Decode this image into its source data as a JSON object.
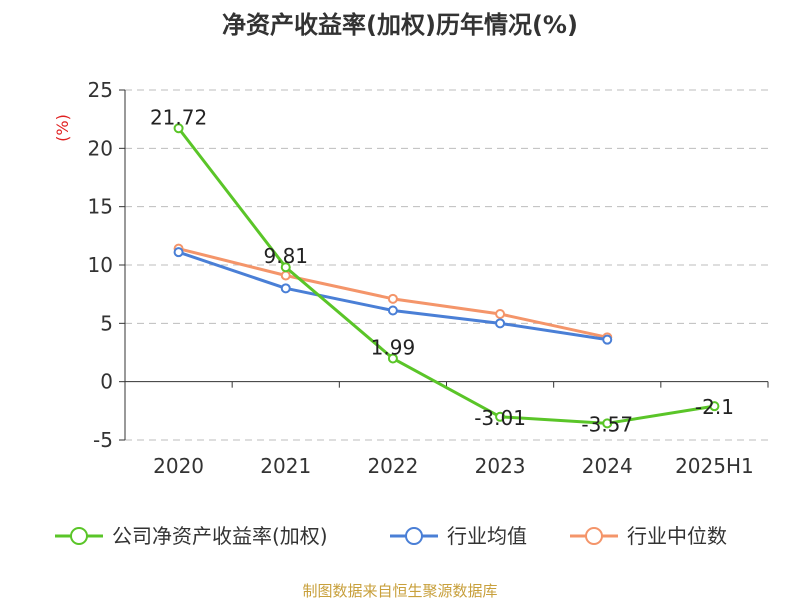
{
  "chart_data": {
    "type": "line",
    "title": "净资产收益率(加权)历年情况(%)",
    "ylabel": "(%)",
    "categories": [
      "2020",
      "2021",
      "2022",
      "2023",
      "2024",
      "2025H1"
    ],
    "ylim": [
      -5,
      25
    ],
    "yticks": [
      "25",
      "20",
      "15",
      "10",
      "5",
      "0",
      "-5"
    ],
    "grid": true,
    "legend_position": "bottom",
    "series": [
      {
        "name": "公司净资产收益率(加权)",
        "color": "#5ac528",
        "values": [
          21.72,
          9.81,
          1.99,
          -3.01,
          -3.57,
          -2.1
        ],
        "labels": [
          "21.72",
          "9.81",
          "1.99",
          "-3.01",
          "-3.57",
          "-2.1"
        ]
      },
      {
        "name": "行业均值",
        "color": "#4a7fd6",
        "values": [
          11.1,
          8.0,
          6.1,
          5.0,
          3.6,
          null
        ]
      },
      {
        "name": "行业中位数",
        "color": "#f4956a",
        "values": [
          11.4,
          9.1,
          7.1,
          5.8,
          3.8,
          null
        ]
      }
    ]
  },
  "footer": {
    "source": "制图数据来自恒生聚源数据库"
  }
}
